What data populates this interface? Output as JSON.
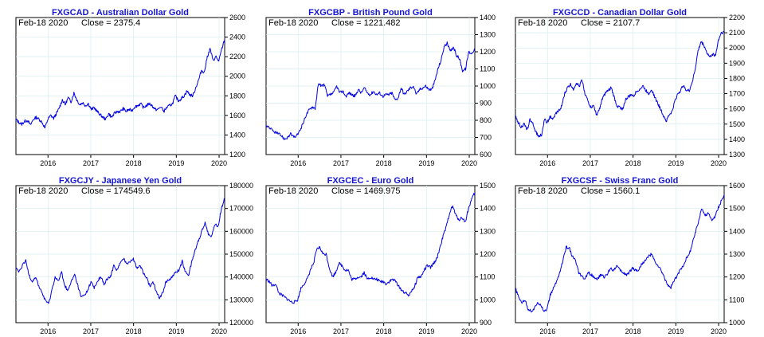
{
  "chart_data": [
    {
      "type": "line",
      "title": "FXGCAD - Australian Dollar Gold",
      "info": {
        "date": "Feb-18  2020",
        "close": "Close = 2375.4"
      },
      "x_ticks": [
        "2016",
        "2017",
        "2018",
        "2019",
        "2020"
      ],
      "y_ticks": [
        "1200",
        "1400",
        "1600",
        "1800",
        "2000",
        "2200",
        "2400",
        "2600"
      ],
      "ylim": [
        1200,
        2600
      ],
      "grid": true,
      "series": [
        {
          "values": [
            1560,
            1530,
            1510,
            1540,
            1550,
            1500,
            1560,
            1580,
            1560,
            1530,
            1470,
            1560,
            1600,
            1570,
            1620,
            1680,
            1760,
            1710,
            1780,
            1740,
            1830,
            1760,
            1710,
            1730,
            1700,
            1720,
            1660,
            1680,
            1640,
            1610,
            1580,
            1560,
            1620,
            1580,
            1620,
            1640,
            1640,
            1670,
            1640,
            1660,
            1650,
            1690,
            1700,
            1720,
            1680,
            1700,
            1720,
            1700,
            1660,
            1660,
            1690,
            1640,
            1680,
            1700,
            1720,
            1800,
            1750,
            1770,
            1800,
            1850,
            1810,
            1800,
            1880,
            1960,
            2060,
            2040,
            2200,
            2280,
            2160,
            2200,
            2150,
            2280,
            2375
          ]
        }
      ]
    },
    {
      "type": "line",
      "title": "FXGCBP - British Pound Gold",
      "info": {
        "date": "Feb-18  2020",
        "close": "Close = 1221.482"
      },
      "x_ticks": [
        "2016",
        "2017",
        "2018",
        "2019",
        "2020"
      ],
      "y_ticks": [
        "600",
        "700",
        "800",
        "900",
        "1000",
        "1100",
        "1200",
        "1300",
        "1400"
      ],
      "ylim": [
        600,
        1400
      ],
      "grid": true,
      "series": [
        {
          "values": [
            770,
            760,
            740,
            730,
            720,
            710,
            690,
            700,
            720,
            700,
            710,
            740,
            780,
            830,
            860,
            880,
            870,
            1010,
            1000,
            1010,
            940,
            950,
            960,
            1000,
            960,
            970,
            940,
            960,
            950,
            940,
            980,
            960,
            990,
            960,
            950,
            970,
            950,
            960,
            940,
            950,
            950,
            960,
            920,
            930,
            990,
            950,
            970,
            990,
            1000,
            950,
            980,
            990,
            1000,
            980,
            980,
            1030,
            1100,
            1150,
            1230,
            1250,
            1200,
            1230,
            1180,
            1160,
            1090,
            1100,
            1200,
            1190,
            1221
          ]
        }
      ]
    },
    {
      "type": "line",
      "title": "FXGCCD - Canadian Dollar Gold",
      "info": {
        "date": "Feb-18  2020",
        "close": "Close = 2107.7"
      },
      "x_ticks": [
        "2016",
        "2017",
        "2018",
        "2019",
        "2020"
      ],
      "y_ticks": [
        "1300",
        "1400",
        "1500",
        "1600",
        "1700",
        "1800",
        "1900",
        "2000",
        "2100",
        "2200"
      ],
      "ylim": [
        1300,
        2200
      ],
      "grid": true,
      "series": [
        {
          "values": [
            1550,
            1510,
            1480,
            1500,
            1460,
            1530,
            1500,
            1450,
            1420,
            1430,
            1530,
            1510,
            1550,
            1530,
            1570,
            1590,
            1620,
            1700,
            1740,
            1760,
            1730,
            1770,
            1750,
            1790,
            1700,
            1650,
            1610,
            1620,
            1560,
            1600,
            1670,
            1700,
            1720,
            1740,
            1680,
            1620,
            1610,
            1600,
            1660,
            1680,
            1690,
            1690,
            1720,
            1730,
            1750,
            1720,
            1700,
            1730,
            1680,
            1640,
            1600,
            1560,
            1520,
            1560,
            1580,
            1650,
            1700,
            1720,
            1760,
            1720,
            1720,
            1780,
            1860,
            1980,
            2040,
            2020,
            1970,
            1940,
            1960,
            1950,
            2050,
            2100,
            2107
          ]
        }
      ]
    },
    {
      "type": "line",
      "title": "FXGCJY - Japanese Yen Gold",
      "info": {
        "date": "Feb-18  2020",
        "close": "Close = 174549.6"
      },
      "x_ticks": [
        "2016",
        "2017",
        "2018",
        "2019",
        "2020"
      ],
      "y_ticks": [
        "120000",
        "130000",
        "140000",
        "150000",
        "160000",
        "170000",
        "180000"
      ],
      "ylim": [
        120000,
        180000
      ],
      "grid": true,
      "series": [
        {
          "values": [
            144000,
            142000,
            145000,
            147000,
            141000,
            138000,
            140000,
            136000,
            133000,
            130000,
            128000,
            134000,
            140000,
            138000,
            142000,
            136000,
            134000,
            138000,
            141000,
            136000,
            131000,
            132000,
            134000,
            138000,
            135000,
            138000,
            140000,
            137000,
            139000,
            140000,
            145000,
            143000,
            146000,
            148000,
            146000,
            147000,
            148000,
            144000,
            145000,
            142000,
            140000,
            136000,
            138000,
            134000,
            131000,
            133000,
            138000,
            139000,
            140000,
            142000,
            143000,
            147000,
            142000,
            141000,
            147000,
            152000,
            156000,
            160000,
            164000,
            159000,
            158000,
            163000,
            162000,
            170000,
            174549
          ]
        }
      ]
    },
    {
      "type": "line",
      "title": "FXGCEC - Euro Gold",
      "info": {
        "date": "Feb-18  2020",
        "close": "Close = 1469.975"
      },
      "x_ticks": [
        "2016",
        "2017",
        "2018",
        "2019",
        "2020"
      ],
      "y_ticks": [
        "900",
        "1000",
        "1100",
        "1200",
        "1300",
        "1400",
        "1500"
      ],
      "ylim": [
        900,
        1500
      ],
      "grid": true,
      "series": [
        {
          "values": [
            1090,
            1080,
            1060,
            1070,
            1030,
            1020,
            1010,
            1000,
            990,
            990,
            1000,
            1050,
            1070,
            1090,
            1130,
            1160,
            1220,
            1230,
            1200,
            1200,
            1140,
            1100,
            1120,
            1160,
            1150,
            1130,
            1130,
            1090,
            1090,
            1100,
            1100,
            1120,
            1090,
            1100,
            1090,
            1090,
            1080,
            1080,
            1070,
            1080,
            1090,
            1080,
            1060,
            1040,
            1030,
            1020,
            1040,
            1060,
            1100,
            1100,
            1130,
            1150,
            1140,
            1160,
            1180,
            1230,
            1280,
            1320,
            1380,
            1410,
            1370,
            1350,
            1360,
            1340,
            1400,
            1440,
            1470
          ]
        }
      ]
    },
    {
      "type": "line",
      "title": "FXGCSF - Swiss Franc Gold",
      "info": {
        "date": "Feb-18  2020",
        "close": "Close = 1560.1"
      },
      "x_ticks": [
        "2016",
        "2017",
        "2018",
        "2019",
        "2020"
      ],
      "y_ticks": [
        "1000",
        "1100",
        "1200",
        "1300",
        "1400",
        "1500",
        "1600"
      ],
      "ylim": [
        1000,
        1600
      ],
      "grid": true,
      "series": [
        {
          "values": [
            1150,
            1110,
            1090,
            1100,
            1060,
            1050,
            1060,
            1090,
            1080,
            1050,
            1060,
            1120,
            1150,
            1180,
            1220,
            1270,
            1330,
            1330,
            1290,
            1270,
            1220,
            1200,
            1190,
            1220,
            1210,
            1200,
            1190,
            1210,
            1200,
            1210,
            1240,
            1230,
            1250,
            1230,
            1220,
            1210,
            1220,
            1240,
            1230,
            1230,
            1260,
            1270,
            1290,
            1300,
            1270,
            1250,
            1230,
            1200,
            1170,
            1150,
            1180,
            1200,
            1230,
            1250,
            1280,
            1300,
            1350,
            1400,
            1450,
            1500,
            1470,
            1480,
            1450,
            1460,
            1500,
            1530,
            1560
          ]
        }
      ]
    }
  ]
}
